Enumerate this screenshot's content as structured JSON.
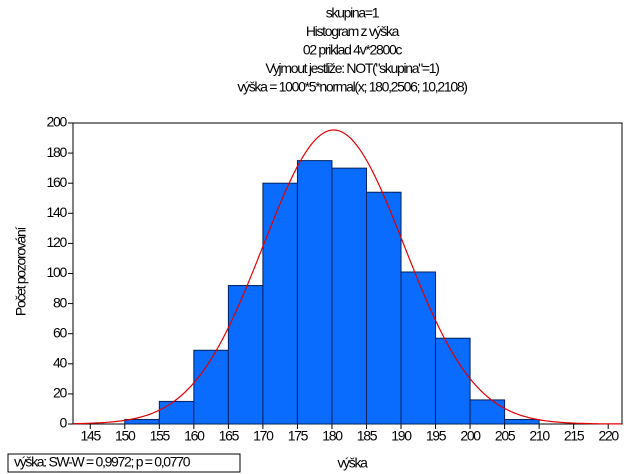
{
  "chart_data": {
    "type": "histogram",
    "title_lines": [
      "skupina=1",
      "Histogram z výška",
      "02 priklad 4v*2800c",
      "Vyjmout jestliže: NOT(\"skupina\"=1)",
      "výška = 1000*5*normal(x; 180,2506; 10,2108)"
    ],
    "x_label": "výška",
    "y_label": "Počet pozorování",
    "stats_note": "výška: SW-W = 0,9972; p = 0,0770",
    "bins": [
      150,
      155,
      160,
      165,
      170,
      175,
      180,
      185,
      190,
      195,
      200,
      205,
      210
    ],
    "values": [
      3,
      15,
      49,
      92,
      160,
      175,
      170,
      154,
      101,
      57,
      16,
      3
    ],
    "color": "#0a6cff",
    "curve": {
      "n": 1000,
      "bin_width": 5,
      "mean": 180.2506,
      "sd": 10.2108,
      "color": "#e00000"
    },
    "xlim": [
      142.5,
      222
    ],
    "ylim": [
      0,
      200
    ],
    "xticks": [
      145,
      150,
      155,
      160,
      165,
      170,
      175,
      180,
      185,
      190,
      195,
      200,
      205,
      210,
      215,
      220
    ],
    "yticks": [
      0,
      20,
      40,
      60,
      80,
      100,
      120,
      140,
      160,
      180,
      200
    ],
    "grid": false
  }
}
